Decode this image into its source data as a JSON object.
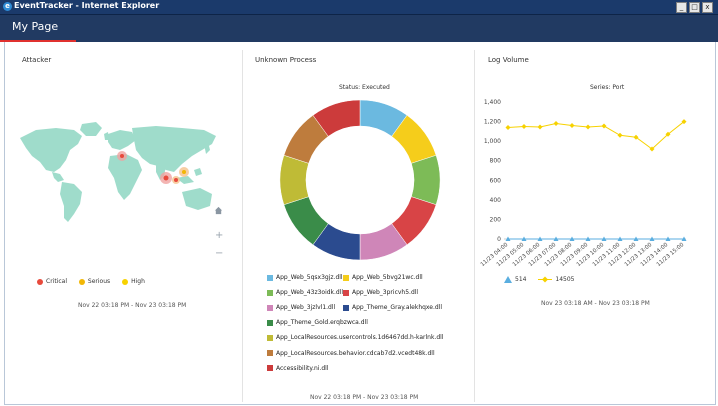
{
  "window": {
    "title": "EventTracker - Internet Explorer",
    "buttons": [
      "_",
      "□",
      "x"
    ]
  },
  "header": {
    "title": "My Page",
    "accent_color": "#e0312f",
    "bg_color": "#213a62"
  },
  "attacker": {
    "title": "Attacker",
    "legend": [
      {
        "label": "Critical",
        "color": "#e84a3c"
      },
      {
        "label": "Serious",
        "color": "#f2b705"
      },
      {
        "label": "High",
        "color": "#f7d200"
      }
    ],
    "range": "Nov 22 03:18 PM - Nov 23 03:18 PM",
    "controls": {
      "home": "home-icon",
      "zoom_in": "+",
      "zoom_out": "−"
    },
    "map_color": "#9fdccb"
  },
  "unknown_process": {
    "title": "Unknown Process",
    "range": "Nov 22 03:18 PM - Nov 23 03:18 PM"
  },
  "log_volume": {
    "title": "Log Volume",
    "legend": [
      {
        "label": "514",
        "color": "#5aaee0",
        "marker": "triangle"
      },
      {
        "label": "14505",
        "color": "#f7d200",
        "marker": "diamond"
      }
    ],
    "range": "Nov 23 03:18 AM - Nov 23 03:18 PM"
  },
  "chart_data": [
    {
      "type": "pie",
      "variant": "donut",
      "title": "Status: Executed",
      "categories": [
        "App_Web_5qsx3gjz.dll",
        "App_Web_5bvg21wc.dll",
        "App_Web_43z3oidk.dll",
        "App_Web_3pricvh5.dll",
        "App_Web_3jzlvl1.dll",
        "App_Theme_Gray.alekhqxe.dll",
        "App_Theme_Gold.erqbzwca.dll",
        "App_LocalResources.usercontrols.1d6467dd.h-karlnk.dll",
        "App_LocalResources.behavior.cdcab7d2.vcedt48k.dll",
        "Accessibility.ni.dll"
      ],
      "values": [
        1,
        1,
        1,
        1,
        1,
        1,
        1,
        1,
        1,
        1
      ],
      "colors": [
        "#6bb9e0",
        "#f5cd1b",
        "#7dbb57",
        "#d84446",
        "#cf86b8",
        "#2b4b8f",
        "#3a8c49",
        "#bfbb36",
        "#be7c3d",
        "#cc3b3b"
      ]
    },
    {
      "type": "line",
      "title": "Series: Port",
      "x": [
        "11/23 04:00",
        "11/23 05:00",
        "11/23 06:00",
        "11/23 07:00",
        "11/23 08:00",
        "11/23 09:00",
        "11/23 10:00",
        "11/23 11:00",
        "11/23 12:00",
        "11/23 13:00",
        "11/23 14:00",
        "11/23 15:00"
      ],
      "series": [
        {
          "name": "514",
          "values": [
            0,
            0,
            0,
            0,
            0,
            0,
            0,
            0,
            0,
            0,
            0,
            0
          ],
          "color": "#5aaee0",
          "marker": "triangle"
        },
        {
          "name": "14505",
          "values": [
            1140,
            1150,
            1145,
            1180,
            1160,
            1145,
            1155,
            1060,
            1040,
            920,
            1070,
            1200
          ],
          "color": "#f7d200",
          "marker": "diamond"
        }
      ],
      "ylim": [
        0,
        1400
      ],
      "yticks": [
        "0",
        "200",
        "400",
        "600",
        "800",
        "1,000",
        "1,200",
        "1,400"
      ],
      "grid": false,
      "legend": "bottom-left"
    }
  ]
}
